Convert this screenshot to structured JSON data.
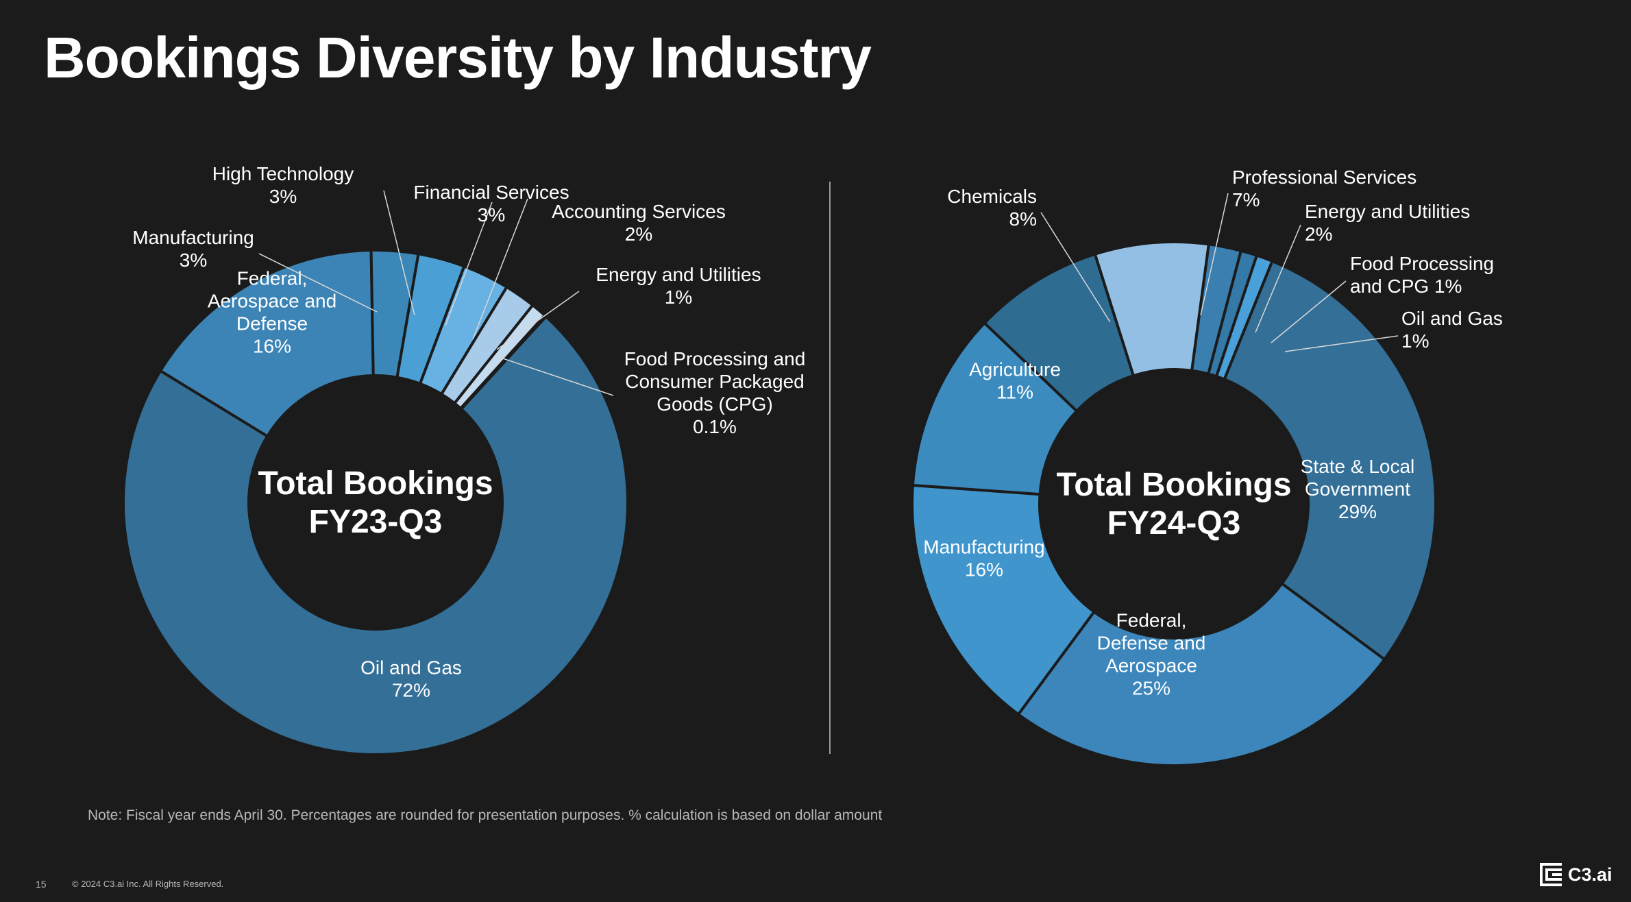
{
  "title": "Bookings Diversity by Industry",
  "note": "Note: Fiscal year ends April 30. Percentages are rounded for presentation purposes. % calculation is based on dollar amount",
  "footer": {
    "page_number": "15",
    "copyright": "© 2024 C3.ai Inc. All Rights Reserved.",
    "logo_text": "C3.ai"
  },
  "colors": {
    "background": "#1b1b1b",
    "text": "#ffffff",
    "leader": "#d8d8d8"
  },
  "chart_data": [
    {
      "type": "pie",
      "variant": "donut",
      "title": "Total Bookings FY23-Q3",
      "center_label": [
        "Total Bookings",
        "FY23-Q3"
      ],
      "unit": "%",
      "slices": [
        {
          "name": "Oil and Gas",
          "label_lines": [
            "Oil and Gas",
            "72%"
          ],
          "value": 72,
          "color": "#336f97",
          "label_mode": "inside"
        },
        {
          "name": "Federal, Aerospace and Defense",
          "label_lines": [
            "Federal,",
            "Aerospace and",
            "Defense",
            "16%"
          ],
          "value": 16,
          "color": "#3c84b6",
          "label_mode": "inside"
        },
        {
          "name": "Manufacturing",
          "label_lines": [
            "Manufacturing",
            "3%"
          ],
          "value": 3,
          "color": "#3b87b8",
          "label_mode": "outside",
          "anchor": "middle"
        },
        {
          "name": "High Technology",
          "label_lines": [
            "High Technology",
            "3%"
          ],
          "value": 3,
          "color": "#4a9fd5",
          "label_mode": "outside",
          "anchor": "middle"
        },
        {
          "name": "Financial Services",
          "label_lines": [
            "Financial Services",
            "3%"
          ],
          "value": 3,
          "color": "#67b1e3",
          "label_mode": "outside",
          "anchor": "middle"
        },
        {
          "name": "Accounting Services",
          "label_lines": [
            "Accounting Services",
            "2%"
          ],
          "value": 2,
          "color": "#a8cbea",
          "label_mode": "outside",
          "anchor": "middle"
        },
        {
          "name": "Energy and Utilities",
          "label_lines": [
            "Energy and Utilities",
            "1%"
          ],
          "value": 1,
          "color": "#c5dbef",
          "label_mode": "outside",
          "anchor": "middle"
        },
        {
          "name": "Food Processing and Consumer Packaged Goods (CPG)",
          "label_lines": [
            "Food Processing and",
            "Consumer Packaged",
            "Goods (CPG)",
            "0.1%"
          ],
          "value": 0.1,
          "color": "#dce9f5",
          "label_mode": "outside",
          "anchor": "middle"
        }
      ]
    },
    {
      "type": "pie",
      "variant": "donut",
      "title": "Total Bookings FY24-Q3",
      "center_label": [
        "Total Bookings",
        "FY24-Q3"
      ],
      "unit": "%",
      "slices": [
        {
          "name": "State & Local Government",
          "label_lines": [
            "State & Local",
            "Government",
            "29%"
          ],
          "value": 29,
          "color": "#336f97",
          "label_mode": "inside"
        },
        {
          "name": "Federal, Defense and Aerospace",
          "label_lines": [
            "Federal,",
            "Defense and",
            "Aerospace",
            "25%"
          ],
          "value": 25,
          "color": "#3c86bb",
          "label_mode": "inside"
        },
        {
          "name": "Manufacturing",
          "label_lines": [
            "Manufacturing",
            "16%"
          ],
          "value": 16,
          "color": "#3f95cc",
          "label_mode": "inside"
        },
        {
          "name": "Agriculture",
          "label_lines": [
            "Agriculture",
            "11%"
          ],
          "value": 11,
          "color": "#3b8bbf",
          "label_mode": "inside"
        },
        {
          "name": "Chemicals",
          "label_lines": [
            "Chemicals",
            "8%"
          ],
          "value": 8,
          "color": "#2f6c92",
          "label_mode": "outside",
          "anchor": "end"
        },
        {
          "name": "Professional Services",
          "label_lines": [
            "Professional Services",
            "7%"
          ],
          "value": 7,
          "color": "#93bfe5",
          "label_mode": "outside",
          "anchor": "start"
        },
        {
          "name": "Energy and Utilities",
          "label_lines": [
            "Energy and Utilities",
            "2%"
          ],
          "value": 2,
          "color": "#3a7fb0",
          "label_mode": "outside",
          "anchor": "start"
        },
        {
          "name": "Food Processing and CPG",
          "label_lines": [
            "Food Processing",
            "and CPG 1%"
          ],
          "value": 1,
          "color": "#3579a8",
          "label_mode": "outside",
          "anchor": "start"
        },
        {
          "name": "Oil and Gas",
          "label_lines": [
            "Oil and Gas",
            "1%"
          ],
          "value": 1,
          "color": "#4aa0d8",
          "label_mode": "outside",
          "anchor": "start"
        }
      ]
    }
  ]
}
